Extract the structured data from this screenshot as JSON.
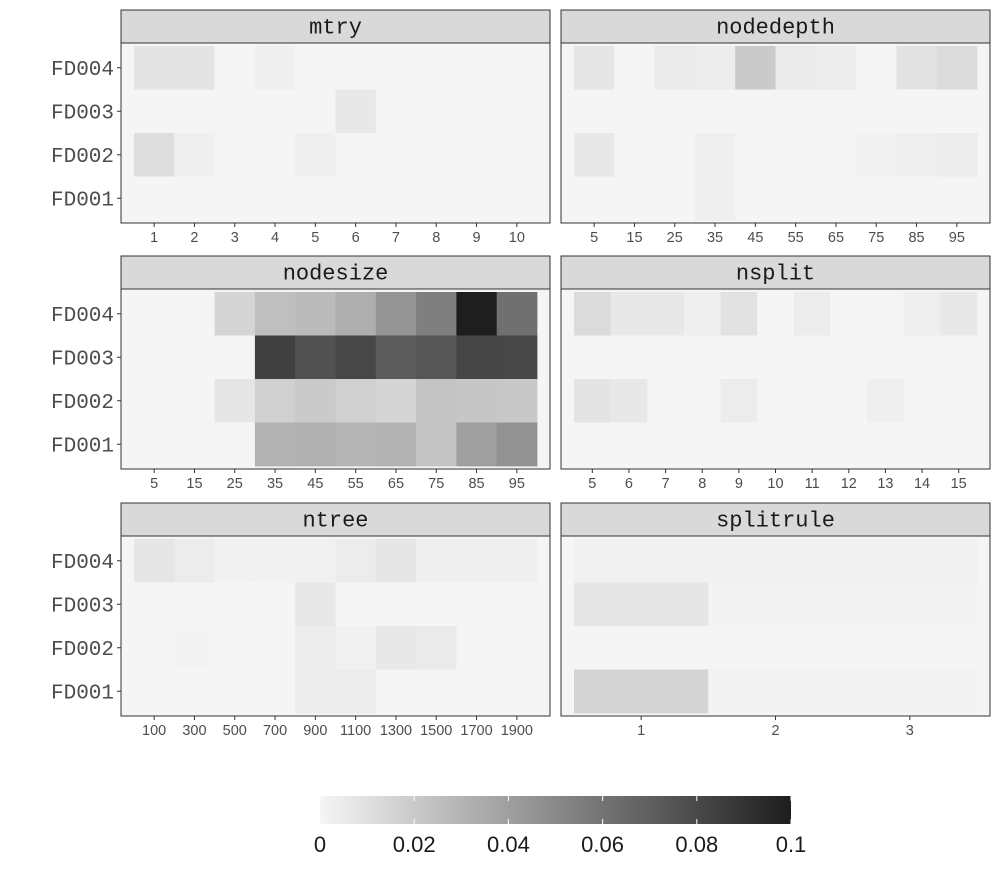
{
  "chart_data": {
    "type": "heatmap",
    "color_scale": {
      "low": "#f5f5f5",
      "high": "#1e1e1e",
      "min": 0,
      "max": 0.1
    },
    "legend": {
      "position": "bottom",
      "ticks": [
        "0",
        "0.02",
        "0.04",
        "0.06",
        "0.08",
        "0.1"
      ],
      "tick_values": [
        0,
        0.02,
        0.04,
        0.06,
        0.08,
        0.1
      ]
    },
    "rows": [
      "FD004",
      "FD003",
      "FD002",
      "FD001"
    ],
    "panels": [
      {
        "title": "mtry",
        "x": [
          "1",
          "2",
          "3",
          "4",
          "5",
          "6",
          "7",
          "8",
          "9",
          "10"
        ],
        "values": [
          [
            0.008,
            0.008,
            0.0,
            0.003,
            0.0,
            0.0,
            0.0,
            0.0,
            0.0,
            0.0
          ],
          [
            0.0,
            0.0,
            0.0,
            0.0,
            0.0,
            0.006,
            0.0,
            0.0,
            0.0,
            0.0
          ],
          [
            0.011,
            0.003,
            0.0,
            0.0,
            0.003,
            0.0,
            0.0,
            0.0,
            0.0,
            0.0
          ],
          [
            0.0,
            0.0,
            0.0,
            0.0,
            0.0,
            0.0,
            0.0,
            0.0,
            0.0,
            0.0
          ]
        ]
      },
      {
        "title": "nodedepth",
        "x": [
          "5",
          "15",
          "25",
          "35",
          "45",
          "55",
          "65",
          "75",
          "85",
          "95"
        ],
        "values": [
          [
            0.007,
            0.0,
            0.005,
            0.004,
            0.02,
            0.005,
            0.004,
            0.0,
            0.009,
            0.012
          ],
          [
            0.0,
            0.0,
            0.0,
            0.0,
            0.0,
            0.0,
            0.0,
            0.0,
            0.0,
            0.0
          ],
          [
            0.006,
            0.0,
            0.0,
            0.003,
            0.0,
            0.0,
            0.0,
            0.002,
            0.003,
            0.004
          ],
          [
            0.0,
            0.0,
            0.0,
            0.003,
            0.0,
            0.0,
            0.0,
            0.0,
            0.0,
            0.0
          ]
        ]
      },
      {
        "title": "nodesize",
        "x": [
          "5",
          "15",
          "25",
          "35",
          "45",
          "55",
          "65",
          "75",
          "85",
          "95"
        ],
        "values": [
          [
            0.0,
            0.0,
            0.015,
            0.025,
            0.027,
            0.033,
            0.045,
            0.055,
            0.1,
            0.062
          ],
          [
            0.0,
            0.0,
            0.0,
            0.084,
            0.076,
            0.081,
            0.071,
            0.074,
            0.082,
            0.081
          ],
          [
            0.0,
            0.0,
            0.007,
            0.017,
            0.02,
            0.017,
            0.015,
            0.023,
            0.022,
            0.021
          ],
          [
            0.0,
            0.0,
            0.0,
            0.031,
            0.032,
            0.03,
            0.031,
            0.023,
            0.04,
            0.046
          ]
        ]
      },
      {
        "title": "nsplit",
        "x": [
          "5",
          "6",
          "7",
          "8",
          "9",
          "10",
          "11",
          "12",
          "13",
          "14",
          "15"
        ],
        "values": [
          [
            0.012,
            0.006,
            0.006,
            0.003,
            0.009,
            0.0,
            0.004,
            0.0,
            0.0,
            0.003,
            0.006
          ],
          [
            0.0,
            0.0,
            0.0,
            0.0,
            0.0,
            0.0,
            0.0,
            0.0,
            0.0,
            0.0,
            0.0
          ],
          [
            0.008,
            0.006,
            0.0,
            0.0,
            0.004,
            0.0,
            0.0,
            0.0,
            0.003,
            0.0,
            0.0
          ],
          [
            0.0,
            0.0,
            0.0,
            0.0,
            0.0,
            0.0,
            0.0,
            0.0,
            0.0,
            0.0,
            0.0
          ]
        ]
      },
      {
        "title": "ntree",
        "x": [
          "100",
          "300",
          "500",
          "700",
          "900",
          "1100",
          "1300",
          "1500",
          "1700",
          "1900"
        ],
        "values": [
          [
            0.007,
            0.004,
            0.002,
            0.002,
            0.002,
            0.004,
            0.007,
            0.003,
            0.003,
            0.003
          ],
          [
            0.0,
            0.0,
            0.0,
            0.0,
            0.006,
            0.0,
            0.0,
            0.0,
            0.0,
            0.0
          ],
          [
            0.0,
            0.001,
            0.0,
            0.0,
            0.004,
            0.002,
            0.006,
            0.005,
            0.0,
            0.0
          ],
          [
            0.0,
            0.0,
            0.0,
            0.0,
            0.004,
            0.004,
            0.0,
            0.0,
            0.0,
            0.0
          ]
        ]
      },
      {
        "title": "splitrule",
        "x": [
          "1",
          "2",
          "3"
        ],
        "values": [
          [
            0.002,
            0.002,
            0.002
          ],
          [
            0.007,
            0.001,
            0.001
          ],
          [
            0.0,
            0.0,
            0.0
          ],
          [
            0.015,
            0.001,
            0.001
          ]
        ]
      }
    ]
  }
}
